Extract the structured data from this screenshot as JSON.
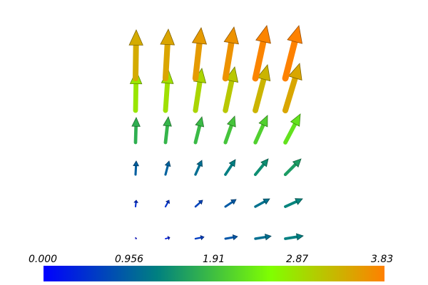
{
  "chart_data": {
    "type": "vector-field",
    "title": "",
    "colormap": {
      "stops": [
        "#0000ff",
        "#008080",
        "#80ff00",
        "#ff8000"
      ],
      "min": 0.0,
      "max": 3.83
    },
    "colorbar": {
      "tick_labels": [
        "0.000",
        "0.956",
        "1.91",
        "2.87",
        "3.83"
      ],
      "tick_values": [
        0.0,
        0.956,
        1.91,
        2.87,
        3.83
      ]
    },
    "grid": {
      "x": [
        0,
        1,
        2,
        3,
        4,
        5
      ],
      "y": [
        0,
        1,
        2,
        3,
        4,
        5
      ]
    },
    "vectors": [
      {
        "gx": 0,
        "gy": 0,
        "u": 0.05,
        "v": 0.05,
        "mag": 0.07
      },
      {
        "gx": 1,
        "gy": 0,
        "u": 0.3,
        "v": 0.08,
        "mag": 0.31
      },
      {
        "gx": 2,
        "gy": 0,
        "u": 0.6,
        "v": 0.12,
        "mag": 0.61
      },
      {
        "gx": 3,
        "gy": 0,
        "u": 0.85,
        "v": 0.15,
        "mag": 0.86
      },
      {
        "gx": 4,
        "gy": 0,
        "u": 1.1,
        "v": 0.18,
        "mag": 1.11
      },
      {
        "gx": 5,
        "gy": 0,
        "u": 1.25,
        "v": 0.2,
        "mag": 1.27
      },
      {
        "gx": 0,
        "gy": 1,
        "u": 0.05,
        "v": 0.45,
        "mag": 0.45
      },
      {
        "gx": 1,
        "gy": 1,
        "u": 0.25,
        "v": 0.45,
        "mag": 0.52
      },
      {
        "gx": 2,
        "gy": 1,
        "u": 0.5,
        "v": 0.45,
        "mag": 0.67
      },
      {
        "gx": 3,
        "gy": 1,
        "u": 0.75,
        "v": 0.5,
        "mag": 0.9
      },
      {
        "gx": 4,
        "gy": 1,
        "u": 1.0,
        "v": 0.55,
        "mag": 1.14
      },
      {
        "gx": 5,
        "gy": 1,
        "u": 1.2,
        "v": 0.55,
        "mag": 1.32
      },
      {
        "gx": 0,
        "gy": 2,
        "u": 0.05,
        "v": 0.95,
        "mag": 0.95
      },
      {
        "gx": 1,
        "gy": 2,
        "u": 0.25,
        "v": 0.95,
        "mag": 0.98
      },
      {
        "gx": 2,
        "gy": 2,
        "u": 0.45,
        "v": 1.0,
        "mag": 1.1
      },
      {
        "gx": 3,
        "gy": 2,
        "u": 0.7,
        "v": 1.05,
        "mag": 1.26
      },
      {
        "gx": 4,
        "gy": 2,
        "u": 0.9,
        "v": 1.1,
        "mag": 1.42
      },
      {
        "gx": 5,
        "gy": 2,
        "u": 1.1,
        "v": 1.1,
        "mag": 1.56
      },
      {
        "gx": 0,
        "gy": 3,
        "u": 0.05,
        "v": 1.75,
        "mag": 1.75
      },
      {
        "gx": 1,
        "gy": 3,
        "u": 0.2,
        "v": 1.8,
        "mag": 1.81
      },
      {
        "gx": 2,
        "gy": 3,
        "u": 0.45,
        "v": 1.8,
        "mag": 1.86
      },
      {
        "gx": 3,
        "gy": 3,
        "u": 0.65,
        "v": 1.85,
        "mag": 1.96
      },
      {
        "gx": 4,
        "gy": 3,
        "u": 0.85,
        "v": 1.9,
        "mag": 2.08
      },
      {
        "gx": 5,
        "gy": 3,
        "u": 1.05,
        "v": 2.0,
        "mag": 2.26
      },
      {
        "gx": 0,
        "gy": 4,
        "u": 0.05,
        "v": 2.8,
        "mag": 2.8
      },
      {
        "gx": 1,
        "gy": 4,
        "u": 0.2,
        "v": 2.85,
        "mag": 2.86
      },
      {
        "gx": 2,
        "gy": 4,
        "u": 0.45,
        "v": 2.95,
        "mag": 2.98
      },
      {
        "gx": 3,
        "gy": 4,
        "u": 0.65,
        "v": 3.05,
        "mag": 3.12
      },
      {
        "gx": 4,
        "gy": 4,
        "u": 0.85,
        "v": 3.2,
        "mag": 3.31
      },
      {
        "gx": 5,
        "gy": 4,
        "u": 1.0,
        "v": 3.3,
        "mag": 3.45
      },
      {
        "gx": 0,
        "gy": 5,
        "u": 0.05,
        "v": 3.4,
        "mag": 3.4
      },
      {
        "gx": 1,
        "gy": 5,
        "u": 0.2,
        "v": 3.45,
        "mag": 3.46
      },
      {
        "gx": 2,
        "gy": 5,
        "u": 0.4,
        "v": 3.55,
        "mag": 3.57
      },
      {
        "gx": 3,
        "gy": 5,
        "u": 0.6,
        "v": 3.6,
        "mag": 3.65
      },
      {
        "gx": 4,
        "gy": 5,
        "u": 0.8,
        "v": 3.7,
        "mag": 3.79
      },
      {
        "gx": 5,
        "gy": 5,
        "u": 0.95,
        "v": 3.7,
        "mag": 3.82
      }
    ]
  }
}
